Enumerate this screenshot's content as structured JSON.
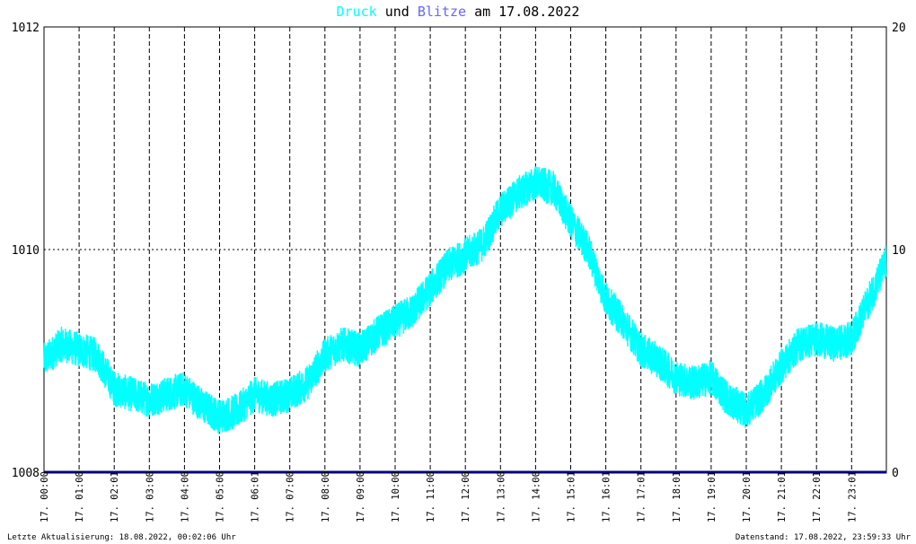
{
  "title": {
    "part1": "Druck",
    "part2": "und",
    "part3": "Blitze",
    "part4": "am 17.08.2022",
    "color1": "#00ffff",
    "color3": "#6666ff"
  },
  "footer": {
    "left": "Letzte Aktualisierung: 18.08.2022, 00:02:06 Uhr",
    "right": "Datenstand: 17.08.2022, 23:59:33 Uhr"
  },
  "chart_data": {
    "type": "line",
    "title": "Druck und Blitze am 17.08.2022",
    "y_left": {
      "ticks": [
        "1012",
        "1010",
        "1008"
      ],
      "range": [
        1008,
        1012
      ]
    },
    "y_right": {
      "ticks": [
        "20",
        "10",
        "0"
      ],
      "range": [
        0,
        20
      ]
    },
    "x_ticks": [
      "17. 00:00",
      "17. 01:00",
      "17. 02:01",
      "17. 03:00",
      "17. 04:00",
      "17. 05:00",
      "17. 06:01",
      "17. 07:00",
      "17. 08:00",
      "17. 09:00",
      "17. 10:00",
      "17. 11:00",
      "17. 12:00",
      "17. 13:00",
      "17. 14:00",
      "17. 15:01",
      "17. 16:01",
      "17. 17:01",
      "17. 18:01",
      "17. 19:01",
      "17. 20:01",
      "17. 21:01",
      "17. 22:01",
      "17. 23:01"
    ],
    "x_range_hours": [
      0,
      24
    ],
    "grid": true,
    "series": [
      {
        "name": "Druck",
        "axis": "left",
        "color": "#00ffff",
        "x_hours": [
          0,
          0.5,
          1.0,
          1.5,
          2.0,
          2.5,
          3.0,
          3.5,
          4.0,
          4.5,
          5.0,
          5.5,
          6.0,
          6.5,
          7.0,
          7.5,
          8.0,
          8.5,
          9.0,
          9.5,
          10.0,
          10.5,
          11.0,
          11.5,
          12.0,
          12.5,
          13.0,
          13.5,
          14.0,
          14.5,
          15.0,
          15.5,
          16.0,
          16.5,
          17.0,
          17.5,
          18.0,
          18.5,
          19.0,
          19.5,
          20.0,
          20.5,
          21.0,
          21.5,
          22.0,
          22.5,
          23.0,
          23.5,
          24.0
        ],
        "values": [
          1009.0,
          1009.15,
          1009.1,
          1009.05,
          1008.75,
          1008.7,
          1008.65,
          1008.7,
          1008.75,
          1008.6,
          1008.5,
          1008.55,
          1008.7,
          1008.65,
          1008.7,
          1008.8,
          1009.05,
          1009.15,
          1009.1,
          1009.25,
          1009.35,
          1009.45,
          1009.65,
          1009.85,
          1009.95,
          1010.05,
          1010.35,
          1010.5,
          1010.6,
          1010.55,
          1010.25,
          1010.0,
          1009.55,
          1009.35,
          1009.1,
          1009.0,
          1008.85,
          1008.8,
          1008.85,
          1008.65,
          1008.55,
          1008.7,
          1008.95,
          1009.15,
          1009.2,
          1009.15,
          1009.2,
          1009.55,
          1009.9
        ]
      },
      {
        "name": "Blitze",
        "axis": "right",
        "color": "#000080",
        "x_hours": [
          0,
          24
        ],
        "values": [
          0,
          0
        ]
      }
    ]
  }
}
